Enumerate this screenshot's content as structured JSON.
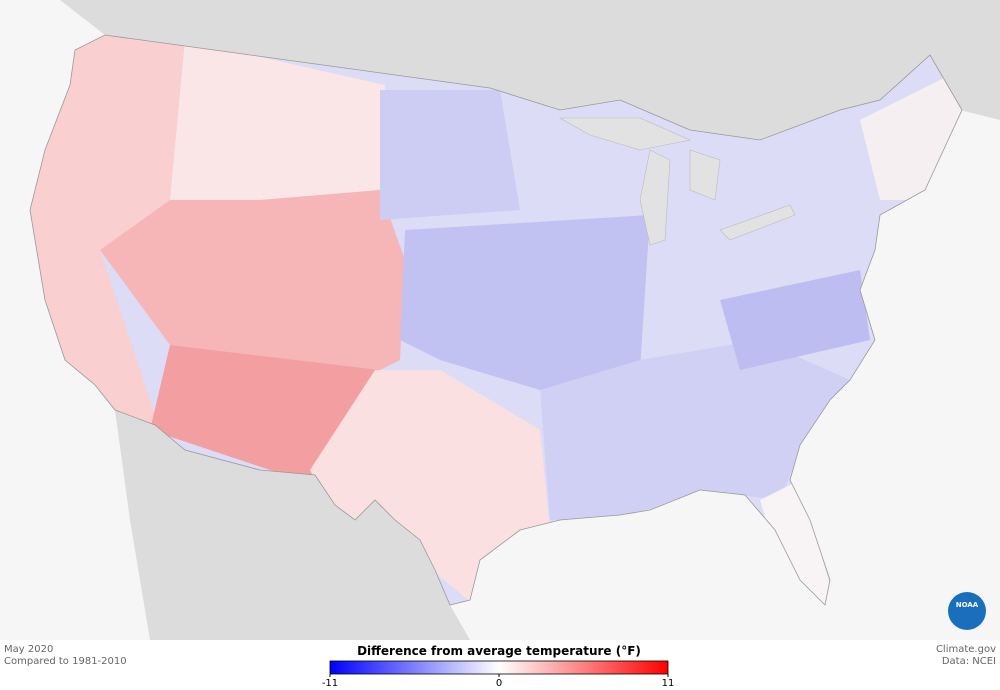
{
  "map": {
    "date": "May 2020",
    "baseline": "Compared to 1981-2010",
    "credit": "Climate.gov",
    "source": "Data: NCEI",
    "logo": "NOAA"
  },
  "legend": {
    "title": "Difference from average temperature (°F)",
    "ticks": [
      -11,
      0,
      11
    ],
    "colors": [
      "#0000ff",
      "#ffffff",
      "#ff0000"
    ]
  }
}
